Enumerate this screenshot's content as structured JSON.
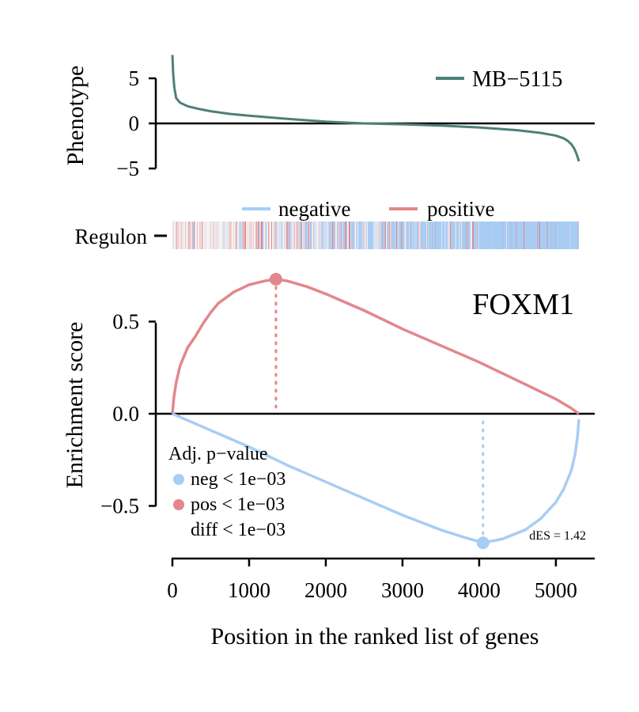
{
  "chart_data": [
    {
      "type": "line",
      "panel": "phenotype",
      "ylabel": "Phenotype",
      "yticks": [
        5,
        0,
        -5
      ],
      "ytick_labels": [
        "5",
        "0",
        "−5"
      ],
      "ylim": [
        -5.3,
        7.5
      ],
      "xlim": [
        0,
        5300
      ],
      "legend": {
        "position": "top-right"
      },
      "series": [
        {
          "name": "MB−5115",
          "color": "#4E7F79",
          "x": [
            0,
            10,
            25,
            50,
            100,
            200,
            350,
            500,
            750,
            1000,
            1500,
            2000,
            2500,
            3000,
            3500,
            4000,
            4500,
            4800,
            5000,
            5100,
            5150,
            5200,
            5240,
            5270,
            5290,
            5300
          ],
          "y": [
            7.6,
            5.5,
            4.0,
            2.8,
            2.3,
            1.9,
            1.6,
            1.35,
            1.05,
            0.85,
            0.5,
            0.2,
            0.0,
            -0.1,
            -0.25,
            -0.45,
            -0.75,
            -1.05,
            -1.35,
            -1.65,
            -1.9,
            -2.3,
            -2.8,
            -3.4,
            -3.9,
            -4.2
          ]
        }
      ]
    },
    {
      "type": "barcode",
      "panel": "regulon",
      "ylabel": "Regulon",
      "xlim": [
        0,
        5300
      ],
      "legend": {
        "position": "top",
        "entries": [
          "negative",
          "positive"
        ]
      },
      "series": [
        {
          "name": "negative",
          "color": "#A8CDF4"
        },
        {
          "name": "positive",
          "color": "#E2878C"
        }
      ]
    },
    {
      "type": "line",
      "panel": "enrichment",
      "title": "FOXM1",
      "ylabel": "Enrichment score",
      "xlabel": "Position in the ranked list of genes",
      "xticks": [
        0,
        1000,
        2000,
        3000,
        4000,
        5000
      ],
      "yticks": [
        0.5,
        0.0,
        -0.5
      ],
      "ytick_labels": [
        "0.5",
        "0.0",
        "−0.5"
      ],
      "ylim": [
        -0.76,
        0.8
      ],
      "xlim": [
        0,
        5300
      ],
      "series": [
        {
          "name": "positive",
          "color": "#E2878C",
          "x": [
            0,
            20,
            50,
            100,
            150,
            200,
            300,
            400,
            500,
            600,
            700,
            800,
            900,
            1000,
            1100,
            1200,
            1350,
            1500,
            1750,
            2000,
            2500,
            3000,
            3500,
            4000,
            4500,
            5000,
            5200,
            5300
          ],
          "y": [
            0.0,
            0.09,
            0.17,
            0.26,
            0.31,
            0.36,
            0.42,
            0.49,
            0.55,
            0.6,
            0.63,
            0.66,
            0.68,
            0.7,
            0.71,
            0.72,
            0.73,
            0.72,
            0.69,
            0.65,
            0.56,
            0.46,
            0.37,
            0.28,
            0.18,
            0.08,
            0.03,
            0.0
          ],
          "peak": {
            "x": 1350,
            "y": 0.73
          }
        },
        {
          "name": "negative",
          "color": "#A8CDF4",
          "x": [
            0,
            500,
            1000,
            1500,
            2000,
            2500,
            3000,
            3500,
            3800,
            4050,
            4300,
            4600,
            4800,
            5000,
            5100,
            5200,
            5250,
            5280,
            5300
          ],
          "y": [
            0.0,
            -0.09,
            -0.18,
            -0.28,
            -0.37,
            -0.46,
            -0.55,
            -0.63,
            -0.67,
            -0.7,
            -0.68,
            -0.63,
            -0.57,
            -0.48,
            -0.41,
            -0.31,
            -0.22,
            -0.13,
            -0.03
          ],
          "trough": {
            "x": 4050,
            "y": -0.7
          }
        }
      ]
    }
  ],
  "labels": {
    "phenotype_ylabel": "Phenotype",
    "regulon_label": "Regulon",
    "enrichment_ylabel": "Enrichment score",
    "xlabel": "Position in the ranked list of genes",
    "title": "FOXM1",
    "phenotype_legend": "MB−5115",
    "legend_negative": "negative",
    "legend_positive": "positive",
    "pvalue_header": "Adj. p−value",
    "pvalue_neg": "neg < 1e−03",
    "pvalue_pos": "pos < 1e−03",
    "pvalue_diff": "diff < 1e−03",
    "des": "dES = 1.42"
  },
  "colors": {
    "phenotype": "#4E7F79",
    "negative": "#A8CDF4",
    "positive": "#E2878C",
    "axis": "#000000"
  }
}
